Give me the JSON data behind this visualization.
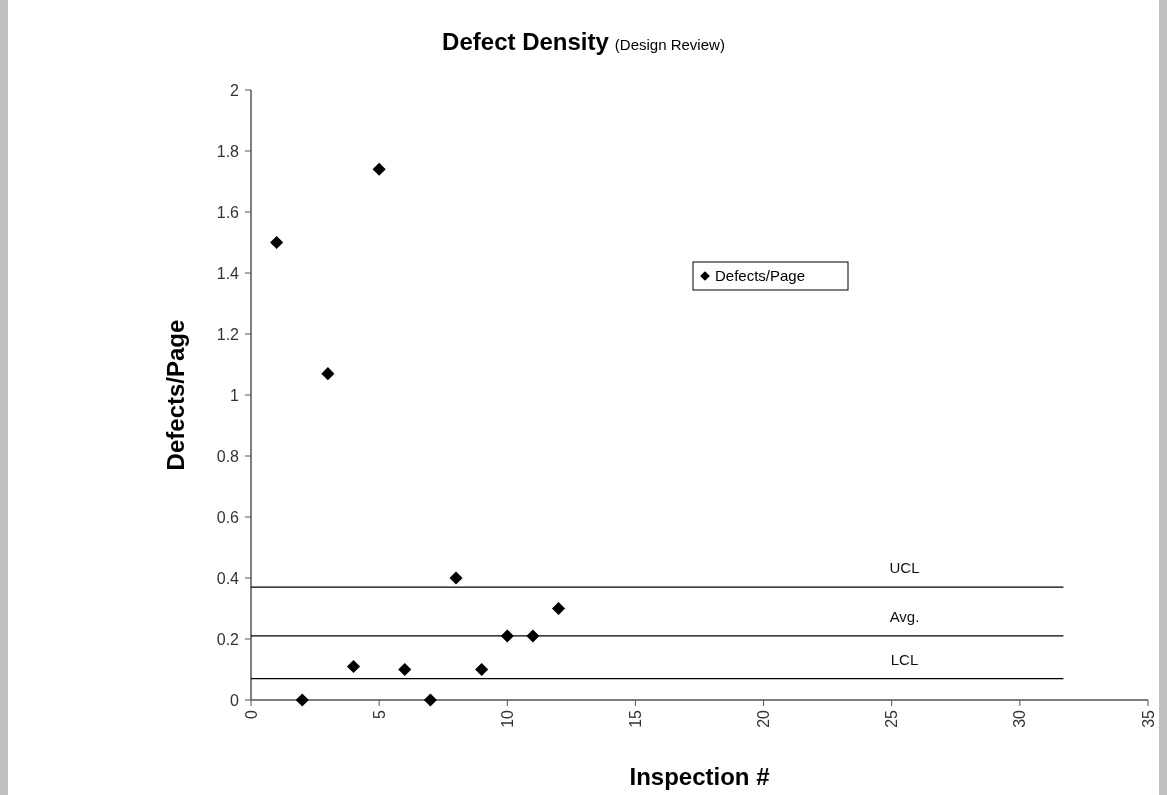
{
  "chart_data": {
    "type": "scatter",
    "title": "Defect Density",
    "subtitle": "(Design Review)",
    "xlabel": "Inspection #",
    "ylabel": "Defects/Page",
    "x": [
      1,
      2,
      3,
      4,
      5,
      6,
      7,
      8,
      9,
      10,
      11,
      12
    ],
    "series": [
      {
        "name": "Defects/Page",
        "color": "#000000",
        "values": [
          1.5,
          0,
          1.07,
          0.11,
          1.74,
          0.1,
          0,
          0.4,
          0.1,
          0.21,
          0.21,
          0.3
        ]
      }
    ],
    "xlim": [
      0,
      35
    ],
    "xticks": [
      0,
      5,
      10,
      15,
      20,
      25,
      30,
      35
    ],
    "ylim": [
      0,
      2
    ],
    "yticks": [
      0,
      0.2,
      0.4,
      0.6,
      0.8,
      1,
      1.2,
      1.4,
      1.6,
      1.8,
      2
    ],
    "ref_lines": [
      {
        "axis": "y",
        "value": 0.37,
        "label": "UCL",
        "color": "#000000"
      },
      {
        "axis": "y",
        "value": 0.21,
        "label": "Avg.",
        "color": "#000000"
      },
      {
        "axis": "y",
        "value": 0.07,
        "label": "LCL",
        "color": "#000000"
      }
    ],
    "grid": false,
    "legend": "top right",
    "marker": "diamond"
  }
}
